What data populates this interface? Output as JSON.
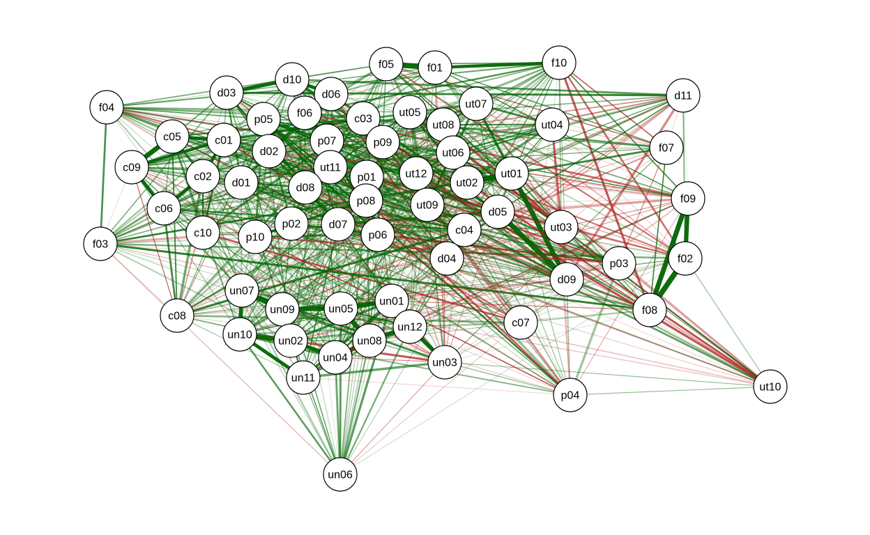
{
  "diagram": {
    "type": "network",
    "colors": {
      "positive": "#006400",
      "negative": "#b22222",
      "node_fill": "#ffffff",
      "node_stroke": "#000000"
    },
    "nodes": [
      "f05",
      "f01",
      "f10",
      "d10",
      "d03",
      "d06",
      "f04",
      "f06",
      "p05",
      "c03",
      "ut05",
      "ut07",
      "d11",
      "c05",
      "c01",
      "ut08",
      "ut04",
      "p07",
      "p09",
      "d02",
      "ut06",
      "f07",
      "c09",
      "ut11",
      "p01",
      "ut12",
      "ut01",
      "c02",
      "d01",
      "d08",
      "ut02",
      "f09",
      "c06",
      "p08",
      "ut09",
      "d05",
      "p02",
      "c10",
      "d07",
      "ut03",
      "p10",
      "p06",
      "c04",
      "f03",
      "d04",
      "f02",
      "p03",
      "d09",
      "un07",
      "un01",
      "c08",
      "un05",
      "un09",
      "f08",
      "c07",
      "un12",
      "un10",
      "un08",
      "un02",
      "un04",
      "un03",
      "un11",
      "ut10",
      "p04",
      "un06"
    ]
  }
}
